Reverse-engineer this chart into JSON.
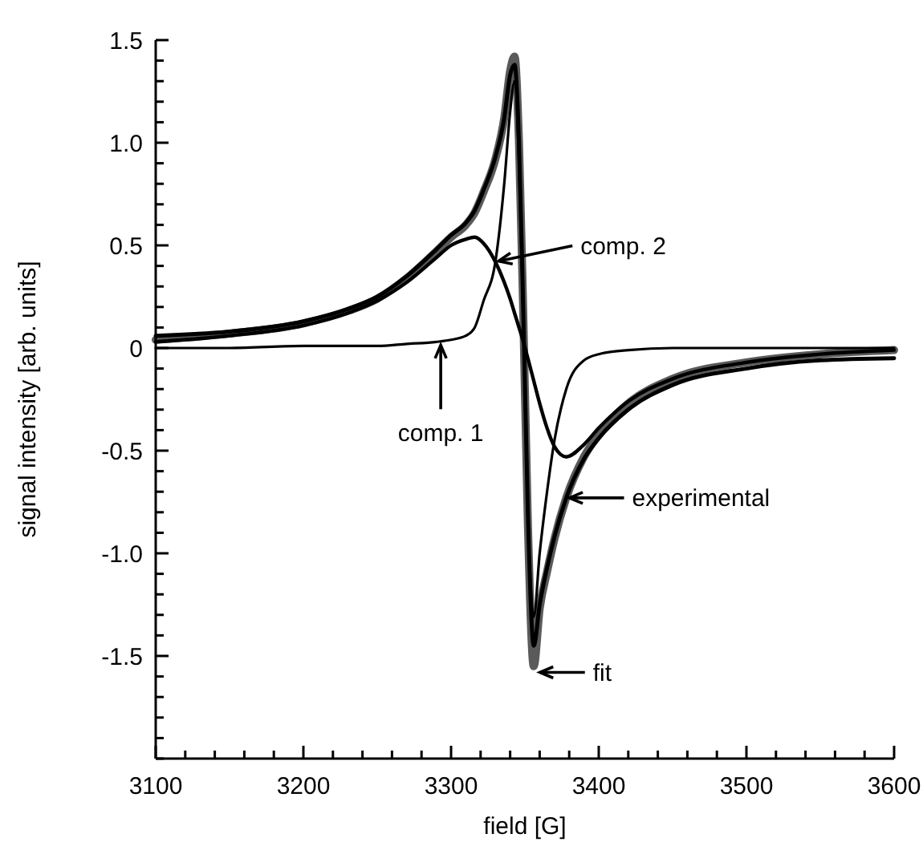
{
  "chart_data": {
    "type": "line",
    "xlabel": "field [G]",
    "ylabel": "signal intensity [arb. units]",
    "x": [
      3100,
      3150,
      3200,
      3230,
      3250,
      3270,
      3290,
      3300,
      3310,
      3316,
      3322,
      3330,
      3336,
      3340,
      3343,
      3346,
      3349,
      3352,
      3356,
      3360,
      3365,
      3370,
      3378,
      3390,
      3400,
      3420,
      3450,
      3500,
      3550,
      3600
    ],
    "series": [
      {
        "color": "#5a5a5a",
        "values": [
          0.04,
          0.07,
          0.12,
          0.18,
          0.24,
          0.34,
          0.47,
          0.54,
          0.6,
          0.66,
          0.76,
          0.92,
          1.12,
          1.35,
          1.42,
          1.0,
          0.13,
          -0.85,
          -1.55,
          -1.27,
          -1.09,
          -0.93,
          -0.73,
          -0.53,
          -0.42,
          -0.27,
          -0.15,
          -0.07,
          -0.03,
          -0.01
        ]
      },
      {
        "color": "#000000",
        "values": [
          0.06,
          0.08,
          0.13,
          0.19,
          0.25,
          0.35,
          0.48,
          0.55,
          0.61,
          0.67,
          0.77,
          0.93,
          1.12,
          1.33,
          1.38,
          1.0,
          0.15,
          -0.8,
          -1.45,
          -1.25,
          -1.07,
          -0.92,
          -0.73,
          -0.54,
          -0.44,
          -0.3,
          -0.18,
          -0.1,
          -0.06,
          -0.05
        ]
      },
      {
        "color": "#000000",
        "values": [
          0,
          0,
          0.01,
          0.01,
          0.01,
          0.02,
          0.03,
          0.04,
          0.06,
          0.1,
          0.23,
          0.42,
          0.8,
          1.15,
          1.3,
          0.9,
          0.1,
          -0.8,
          -1.31,
          -1.0,
          -0.7,
          -0.45,
          -0.2,
          -0.06,
          -0.03,
          -0.01,
          0,
          0,
          0,
          0
        ]
      },
      {
        "color": "#000000",
        "values": [
          0.03,
          0.06,
          0.11,
          0.17,
          0.23,
          0.32,
          0.44,
          0.5,
          0.53,
          0.54,
          0.51,
          0.42,
          0.32,
          0.24,
          0.17,
          0.1,
          0.03,
          -0.05,
          -0.16,
          -0.27,
          -0.39,
          -0.48,
          -0.53,
          -0.47,
          -0.39,
          -0.26,
          -0.15,
          -0.07,
          -0.03,
          -0.01
        ]
      }
    ],
    "xlim": [
      3100,
      3600
    ],
    "xticks": [
      3100,
      {
        "value": 3120,
        "label": null
      },
      {
        "value": 3140,
        "label": null
      },
      {
        "value": 3160,
        "label": null
      },
      {
        "value": 3180,
        "label": null
      },
      3200,
      {
        "value": 3220,
        "label": null
      },
      {
        "value": 3240,
        "label": null
      },
      {
        "value": 3260,
        "label": null
      },
      {
        "value": 3280,
        "label": null
      },
      3300,
      {
        "value": 3320,
        "label": null
      },
      {
        "value": 3340,
        "label": null
      },
      {
        "value": 3360,
        "label": null
      },
      {
        "value": 3380,
        "label": null
      },
      3400,
      {
        "value": 3420,
        "label": null
      },
      {
        "value": 3440,
        "label": null
      },
      {
        "value": 3460,
        "label": null
      },
      {
        "value": 3480,
        "label": null
      },
      3500,
      {
        "value": 3520,
        "label": null
      },
      {
        "value": 3540,
        "label": null
      },
      {
        "value": 3560,
        "label": null
      },
      {
        "value": 3580,
        "label": null
      },
      3600
    ],
    "ylim": [
      -2,
      1.5
    ],
    "yticks": [
      {
        "value": -2,
        "label": null
      },
      {
        "value": -1.9,
        "label": null
      },
      {
        "value": -1.8,
        "label": null
      },
      {
        "value": -1.7,
        "label": null
      },
      {
        "value": -1.6,
        "label": null
      },
      {
        "value": -1.5,
        "label": "-1.5"
      },
      {
        "value": -1.4,
        "label": null
      },
      {
        "value": -1.3,
        "label": null
      },
      {
        "value": -1.2,
        "label": null
      },
      {
        "value": -1.1,
        "label": null
      },
      {
        "value": -1,
        "label": "-1.0"
      },
      {
        "value": -0.9,
        "label": null
      },
      {
        "value": -0.8,
        "label": null
      },
      {
        "value": -0.7,
        "label": null
      },
      {
        "value": -0.6,
        "label": null
      },
      {
        "value": -0.5,
        "label": "-0.5"
      },
      {
        "value": -0.4,
        "label": null
      },
      {
        "value": -0.3,
        "label": null
      },
      {
        "value": -0.2,
        "label": null
      },
      {
        "value": -0.1,
        "label": null
      },
      0,
      {
        "value": 0.1,
        "label": null
      },
      {
        "value": 0.2,
        "label": null
      },
      {
        "value": 0.3,
        "label": null
      },
      {
        "value": 0.4,
        "label": null
      },
      {
        "value": 0.5,
        "label": "0.5"
      },
      {
        "value": 0.6,
        "label": null
      },
      {
        "value": 0.7,
        "label": null
      },
      {
        "value": 0.8,
        "label": null
      },
      {
        "value": 0.9,
        "label": null
      },
      {
        "value": 1,
        "label": "1.0"
      },
      {
        "value": 1.1,
        "label": null
      },
      {
        "value": 1.2,
        "label": null
      },
      {
        "value": 1.3,
        "label": null
      },
      {
        "value": 1.4,
        "label": null
      },
      {
        "value": 1.5,
        "label": "1.5"
      }
    ],
    "annotations": [
      {
        "text": "comp. 2",
        "x": 3330,
        "y": 0.42
      },
      {
        "text": "comp. 1",
        "x": 3293,
        "y": 0.03
      },
      {
        "text": "experimental",
        "x": 3378,
        "y": -0.73
      },
      {
        "text": "fit",
        "x": 3358,
        "y": -1.58
      }
    ],
    "grid": false,
    "marker": "none",
    "line_style": "solid"
  }
}
